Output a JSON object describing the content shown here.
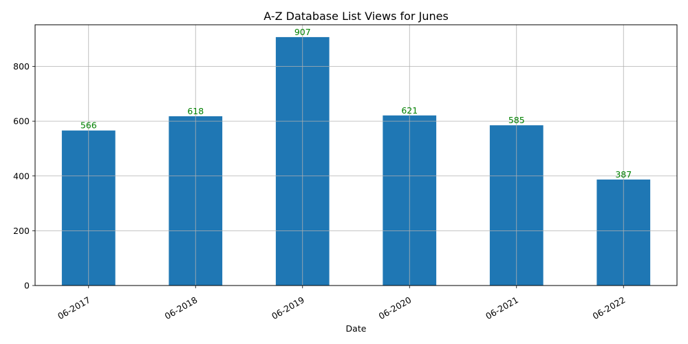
{
  "chart_data": {
    "type": "bar",
    "title": "A-Z Database List Views for Junes",
    "xlabel": "Date",
    "ylabel": "",
    "categories": [
      "06-2017",
      "06-2018",
      "06-2019",
      "06-2020",
      "06-2021",
      "06-2022"
    ],
    "values": [
      566,
      618,
      907,
      621,
      585,
      387
    ],
    "ylim": [
      0,
      952
    ],
    "yticks": [
      0,
      200,
      400,
      600,
      800
    ],
    "grid": true,
    "bar_color": "#1f77b4",
    "label_color": "#008000",
    "xtick_rotation_deg": 30
  }
}
